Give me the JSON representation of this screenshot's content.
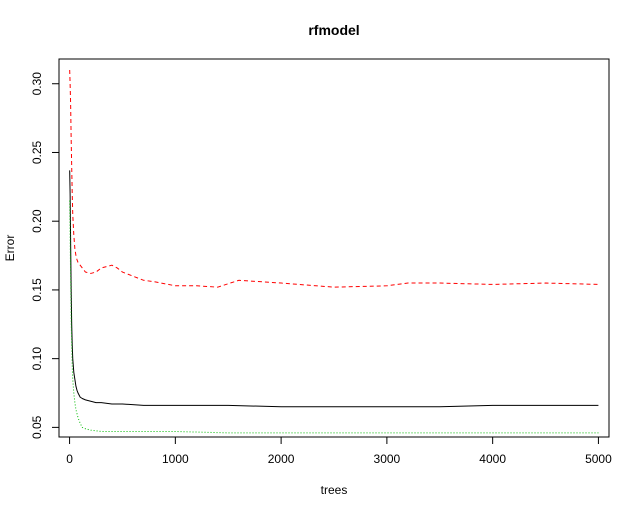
{
  "chart_data": {
    "type": "line",
    "title": "rfmodel",
    "xlabel": "trees",
    "ylabel": "Error",
    "xlim": [
      -100,
      5100
    ],
    "ylim": [
      0.043,
      0.318
    ],
    "x_ticks": [
      0,
      1000,
      2000,
      3000,
      4000,
      5000
    ],
    "x_tick_labels": [
      "0",
      "1000",
      "2000",
      "3000",
      "4000",
      "5000"
    ],
    "y_ticks": [
      0.05,
      0.1,
      0.15,
      0.2,
      0.25,
      0.3
    ],
    "y_tick_labels": [
      "0.05",
      "0.10",
      "0.15",
      "0.20",
      "0.25",
      "0.30"
    ],
    "grid": false,
    "legend": "none",
    "series": [
      {
        "color": "#000000",
        "line_style": "solid",
        "x": [
          1,
          5,
          10,
          15,
          20,
          25,
          30,
          40,
          50,
          60,
          70,
          80,
          100,
          120,
          150,
          200,
          250,
          300,
          400,
          500,
          700,
          1000,
          1500,
          2000,
          2500,
          3000,
          3500,
          4000,
          4500,
          5000
        ],
        "values": [
          0.237,
          0.22,
          0.185,
          0.15,
          0.125,
          0.11,
          0.1,
          0.09,
          0.085,
          0.08,
          0.077,
          0.075,
          0.072,
          0.071,
          0.07,
          0.069,
          0.068,
          0.068,
          0.067,
          0.067,
          0.066,
          0.066,
          0.066,
          0.065,
          0.065,
          0.065,
          0.065,
          0.066,
          0.066,
          0.066
        ]
      },
      {
        "color": "#ff0000",
        "line_style": "dashed",
        "x": [
          1,
          5,
          10,
          15,
          20,
          25,
          30,
          40,
          50,
          60,
          70,
          80,
          100,
          120,
          150,
          200,
          250,
          300,
          350,
          400,
          450,
          500,
          600,
          700,
          800,
          1000,
          1200,
          1400,
          1600,
          1800,
          2000,
          2500,
          3000,
          3200,
          3500,
          4000,
          4500,
          5000
        ],
        "values": [
          0.31,
          0.3,
          0.285,
          0.26,
          0.24,
          0.22,
          0.205,
          0.19,
          0.18,
          0.175,
          0.172,
          0.17,
          0.168,
          0.166,
          0.163,
          0.162,
          0.163,
          0.166,
          0.167,
          0.168,
          0.166,
          0.163,
          0.16,
          0.157,
          0.156,
          0.153,
          0.153,
          0.152,
          0.157,
          0.156,
          0.155,
          0.152,
          0.153,
          0.155,
          0.155,
          0.154,
          0.155,
          0.154
        ]
      },
      {
        "color": "#00bb00",
        "line_style": "dotted",
        "x": [
          1,
          5,
          10,
          15,
          20,
          25,
          30,
          40,
          50,
          60,
          70,
          80,
          100,
          120,
          150,
          200,
          300,
          400,
          500,
          700,
          1000,
          1500,
          2000,
          3000,
          4000,
          5000
        ],
        "values": [
          0.215,
          0.19,
          0.16,
          0.13,
          0.11,
          0.095,
          0.085,
          0.075,
          0.068,
          0.063,
          0.06,
          0.057,
          0.053,
          0.05,
          0.049,
          0.048,
          0.047,
          0.047,
          0.047,
          0.047,
          0.047,
          0.046,
          0.046,
          0.046,
          0.046,
          0.046
        ]
      }
    ]
  }
}
